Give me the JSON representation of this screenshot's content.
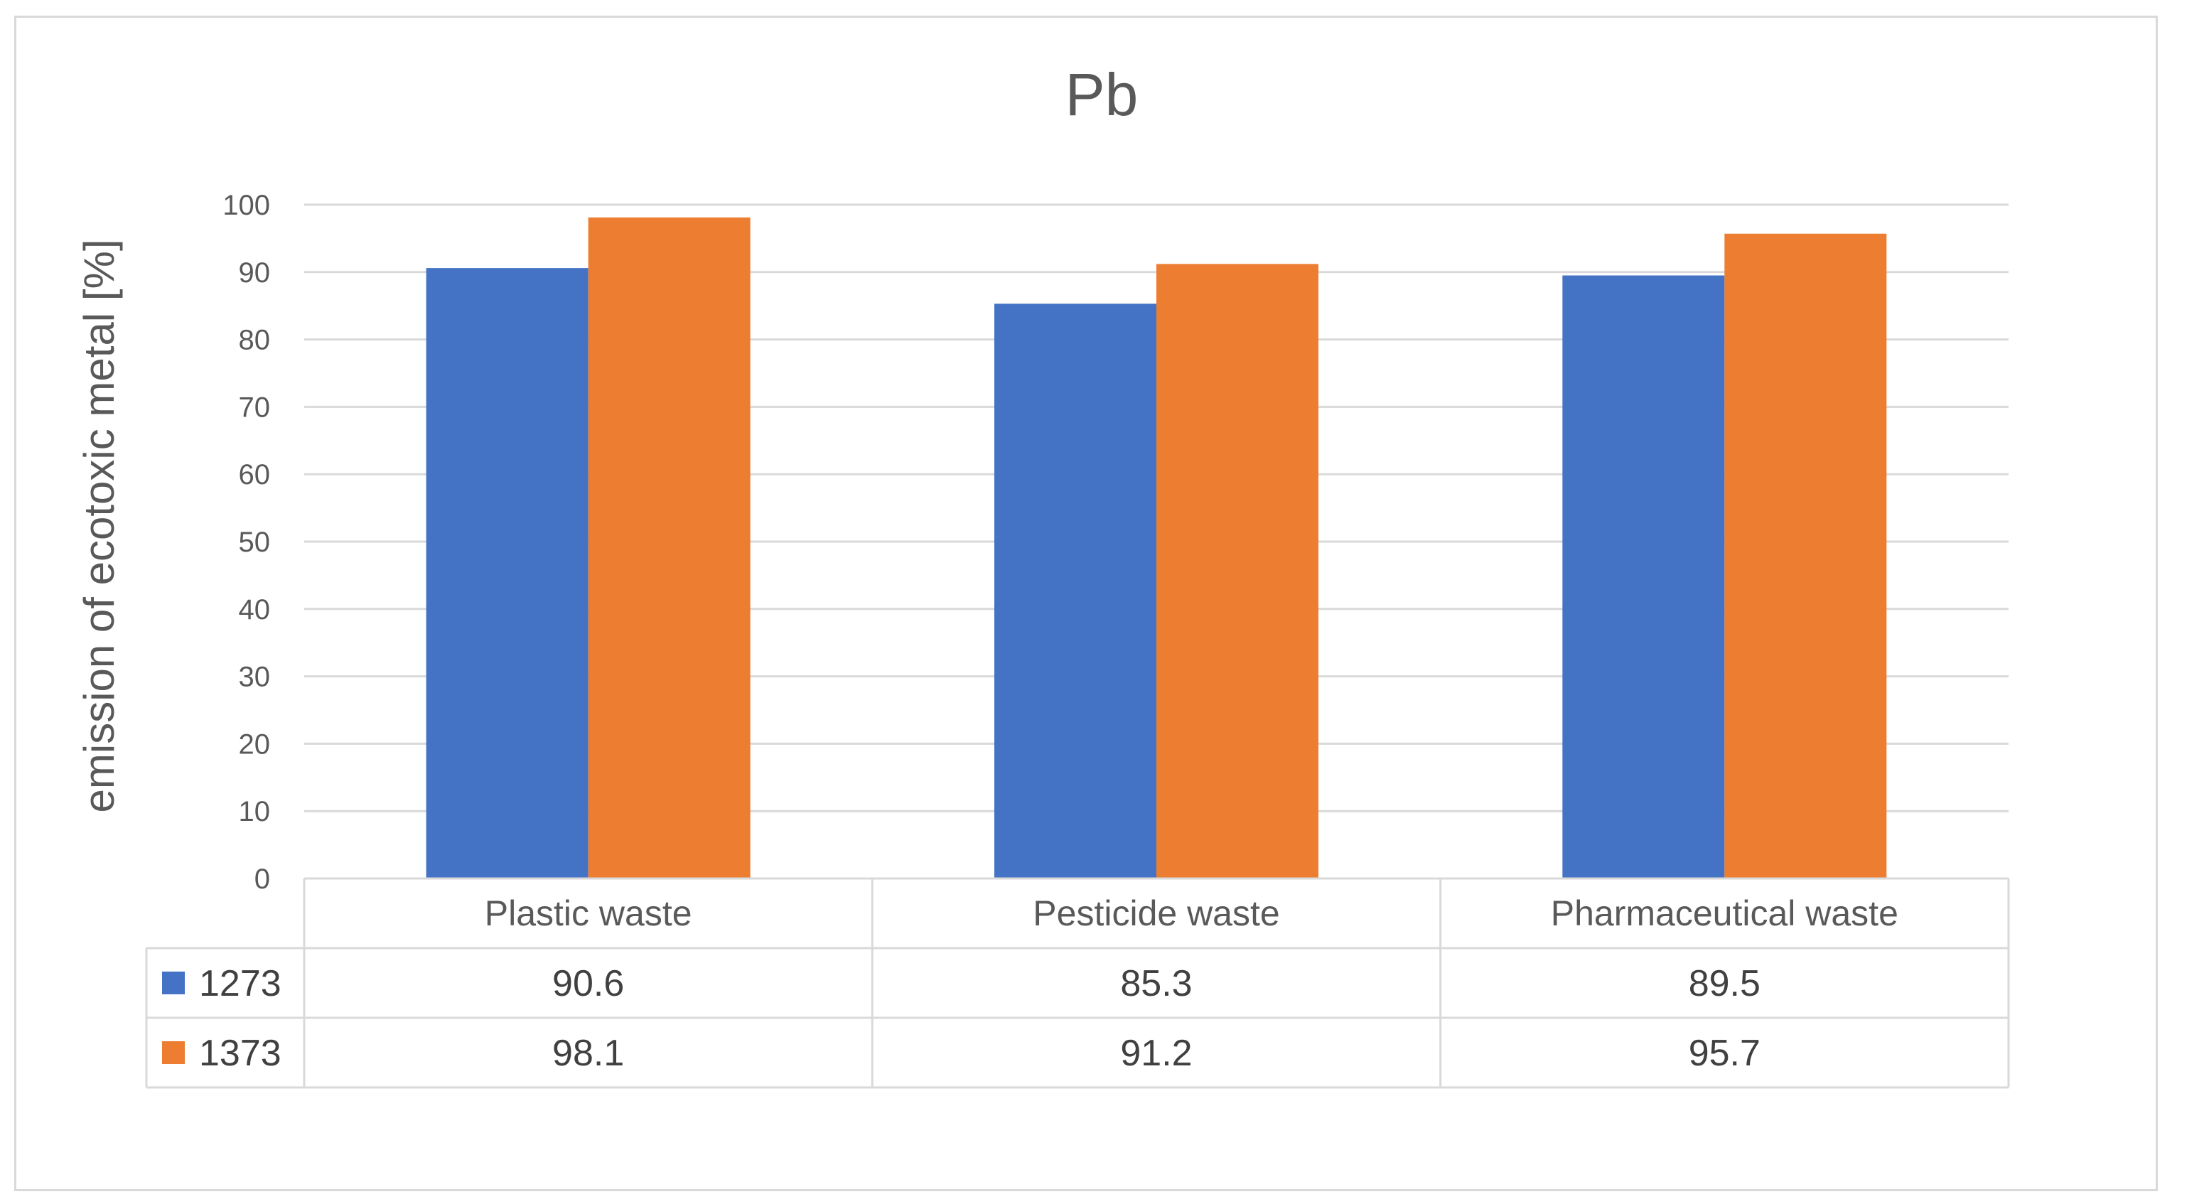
{
  "chart_data": {
    "type": "bar",
    "title": "Pb",
    "xlabel": "",
    "ylabel": "emission of ecotoxic metal [%]",
    "ylim": [
      0,
      100
    ],
    "yticks": [
      0,
      10,
      20,
      30,
      40,
      50,
      60,
      70,
      80,
      90,
      100
    ],
    "grid": true,
    "legend": "data-table",
    "categories": [
      "Plastic waste",
      "Pesticide waste",
      "Pharmaceutical waste"
    ],
    "series": [
      {
        "name": "1273",
        "color": "#4472c4",
        "values": [
          90.6,
          85.3,
          89.5
        ],
        "labels": [
          "90.6",
          "85.3",
          "89.5"
        ]
      },
      {
        "name": "1373",
        "color": "#ed7d31",
        "values": [
          98.1,
          91.2,
          95.7
        ],
        "labels": [
          "98.1",
          "91.2",
          "95.7"
        ]
      }
    ]
  }
}
